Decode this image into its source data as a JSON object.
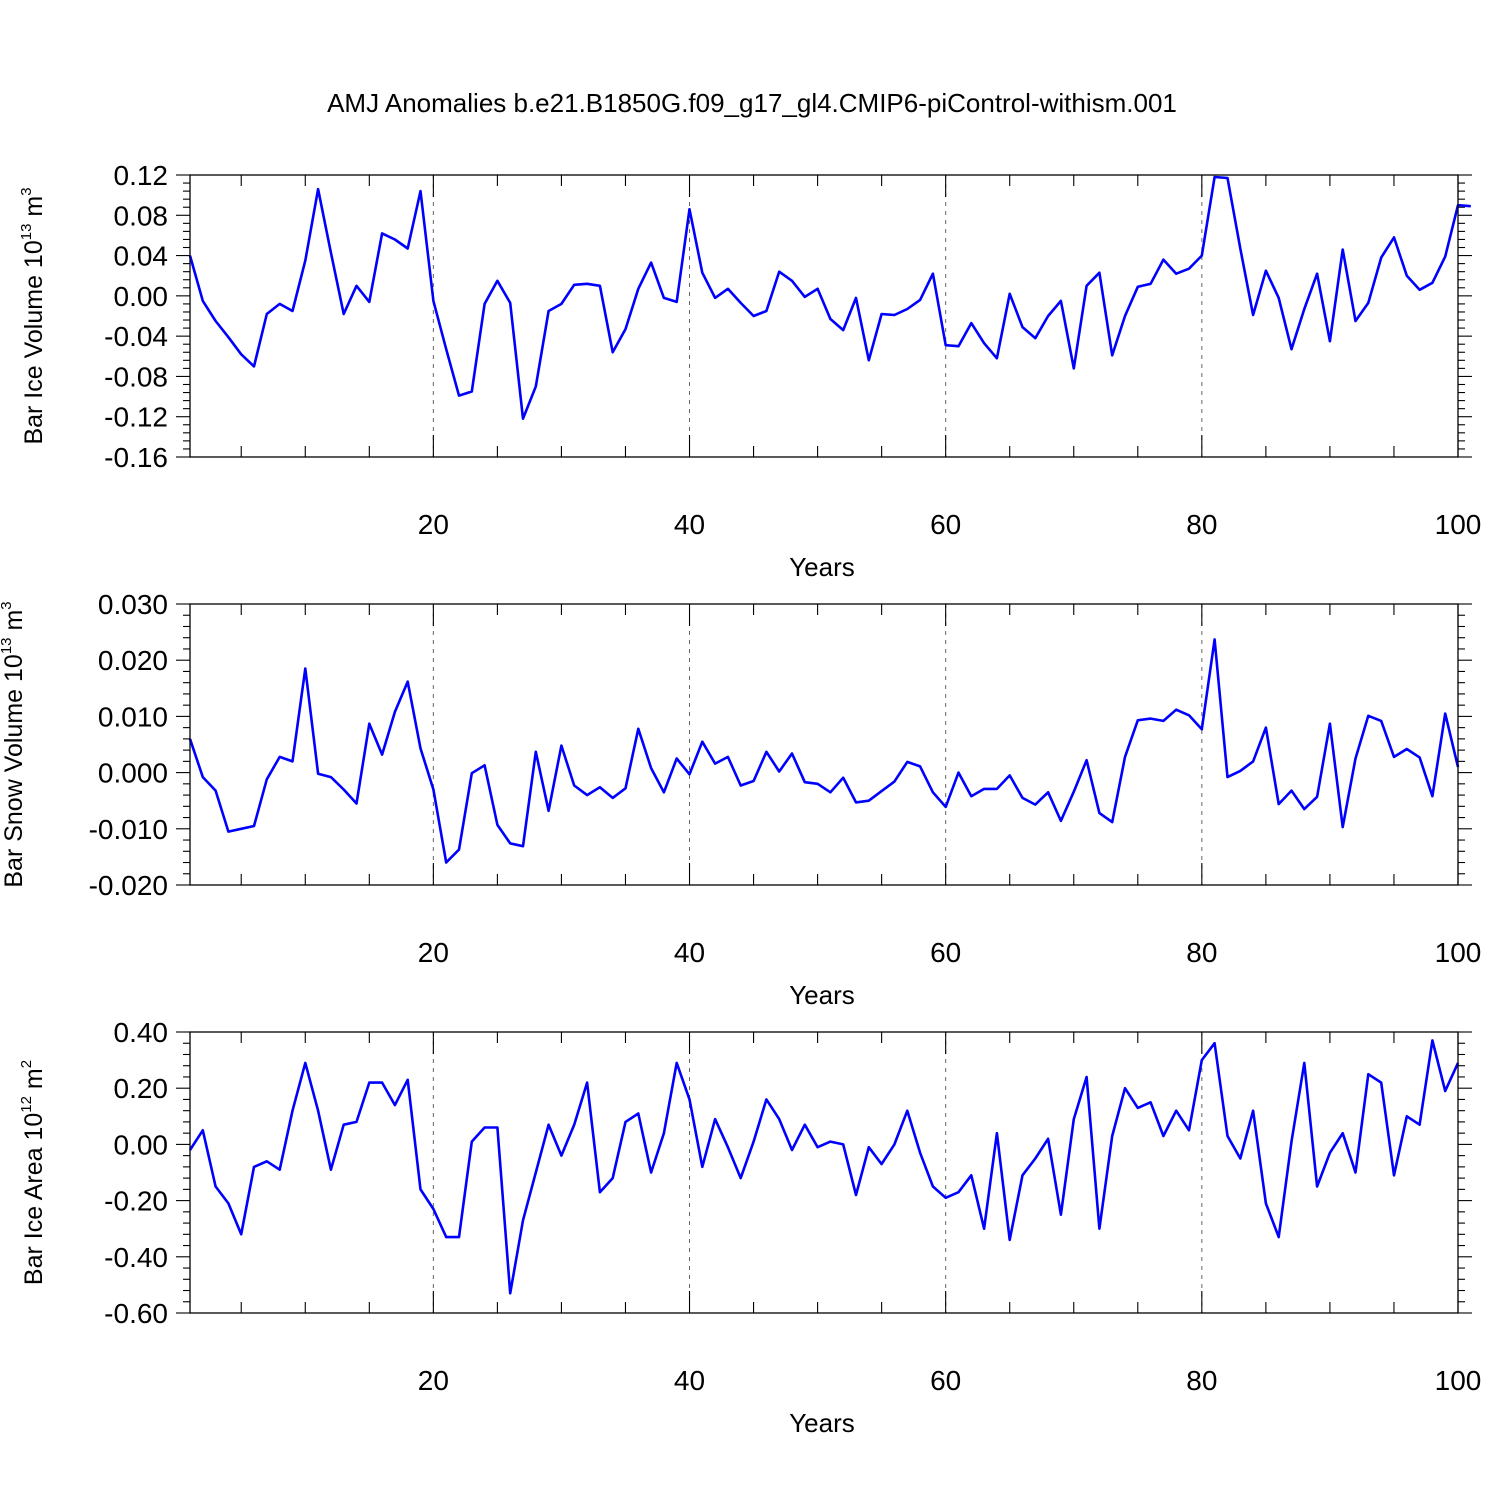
{
  "chart_data": [
    {
      "type": "line",
      "title": "AMJ Anomalies b.e21.B1850G.f09_g17_gl4.CMIP6-piControl-withism.001",
      "xlabel": "Years",
      "ylabel": {
        "base": "Bar Ice Volume 10",
        "exp": "13",
        "unit": " m",
        "unit_exp": "3"
      },
      "xlim": [
        1,
        100
      ],
      "ylim": [
        -0.16,
        0.12
      ],
      "xticks": [
        20,
        40,
        60,
        80,
        100
      ],
      "xtick_labels": [
        "20",
        "40",
        "60",
        "80",
        "100"
      ],
      "yticks": [
        -0.16,
        -0.12,
        -0.08,
        -0.04,
        0.0,
        0.04,
        0.08,
        0.12
      ],
      "ytick_labels": [
        "-0.16",
        "-0.12",
        "-0.08",
        "-0.04",
        "0.00",
        "0.04",
        "0.08",
        "0.12"
      ],
      "grid_x": [
        20,
        40,
        60,
        80
      ],
      "color": "#0000ff",
      "series": [
        {
          "name": "Bar Ice Volume",
          "values": [
            0.04,
            -0.005,
            -0.025,
            -0.041,
            -0.058,
            -0.07,
            -0.018,
            -0.008,
            -0.015,
            0.035,
            0.106,
            0.043,
            -0.018,
            0.01,
            -0.006,
            0.062,
            0.056,
            0.047,
            0.104,
            -0.005,
            -0.053,
            -0.099,
            -0.095,
            -0.008,
            0.015,
            -0.007,
            -0.122,
            -0.09,
            -0.015,
            -0.008,
            0.011,
            0.012,
            0.01,
            -0.056,
            -0.033,
            0.007,
            0.033,
            -0.002,
            -0.006,
            0.086,
            0.023,
            -0.002,
            0.007,
            -0.007,
            -0.02,
            -0.015,
            0.024,
            0.015,
            -0.001,
            0.007,
            -0.023,
            -0.034,
            -0.002,
            -0.064,
            -0.018,
            -0.019,
            -0.013,
            -0.004,
            0.022,
            -0.049,
            -0.05,
            -0.027,
            -0.047,
            -0.062,
            0.002,
            -0.031,
            -0.042,
            -0.02,
            -0.005,
            -0.072,
            0.01,
            0.023,
            -0.059,
            -0.02,
            0.009,
            0.012,
            0.036,
            0.022,
            0.027,
            0.04,
            0.118,
            0.117,
            0.047,
            -0.019,
            0.025,
            -0.002,
            -0.053,
            -0.013,
            0.022,
            -0.045,
            0.046,
            -0.025,
            -0.007,
            0.038,
            0.058,
            0.02,
            0.006,
            0.013,
            0.039,
            0.09,
            0.089
          ]
        }
      ]
    },
    {
      "type": "line",
      "xlabel": "Years",
      "ylabel": {
        "base": "Bar Snow Volume 10",
        "exp": "13",
        "unit": " m",
        "unit_exp": "3"
      },
      "xlim": [
        1,
        100
      ],
      "ylim": [
        -0.02,
        0.03
      ],
      "xticks": [
        20,
        40,
        60,
        80,
        100
      ],
      "xtick_labels": [
        "20",
        "40",
        "60",
        "80",
        "100"
      ],
      "yticks": [
        -0.02,
        -0.01,
        0.0,
        0.01,
        0.02,
        0.03
      ],
      "ytick_labels": [
        "-0.020",
        "-0.010",
        "0.000",
        "0.010",
        "0.020",
        "0.030"
      ],
      "grid_x": [
        20,
        40,
        60,
        80
      ],
      "color": "#0000ff",
      "series": [
        {
          "name": "Bar Snow Volume",
          "values": [
            0.006,
            -0.0008,
            -0.0032,
            -0.0105,
            -0.01,
            -0.0095,
            -0.0012,
            0.0028,
            0.002,
            0.0185,
            -0.0002,
            -0.0008,
            -0.003,
            -0.0055,
            0.0087,
            0.0032,
            0.0108,
            0.0162,
            0.0043,
            -0.003,
            -0.016,
            -0.0137,
            -0.0001,
            0.0013,
            -0.0093,
            -0.0126,
            -0.0131,
            0.0037,
            -0.0068,
            0.0048,
            -0.0023,
            -0.004,
            -0.0026,
            -0.0045,
            -0.0028,
            0.0078,
            0.0008,
            -0.0035,
            0.0025,
            -0.0003,
            0.0055,
            0.0016,
            0.0028,
            -0.0023,
            -0.0015,
            0.0037,
            0.0002,
            0.0034,
            -0.0017,
            -0.002,
            -0.0035,
            -0.0009,
            -0.0053,
            -0.005,
            -0.0033,
            -0.0016,
            0.0019,
            0.0011,
            -0.0035,
            -0.0061,
            0.0,
            -0.0042,
            -0.0029,
            -0.0029,
            -0.0005,
            -0.0045,
            -0.0057,
            -0.0035,
            -0.0086,
            -0.0034,
            0.0022,
            -0.0072,
            -0.0088,
            0.0028,
            0.0093,
            0.0096,
            0.0092,
            0.0112,
            0.0102,
            0.0077,
            0.0237,
            -0.0008,
            0.0003,
            0.002,
            0.008,
            -0.0056,
            -0.0032,
            -0.0065,
            -0.0043,
            0.0087,
            -0.0097,
            0.0025,
            0.0101,
            0.0092,
            0.0028,
            0.0042,
            0.0027,
            -0.0042,
            0.0105,
            0.001
          ]
        }
      ]
    },
    {
      "type": "line",
      "xlabel": "Years",
      "ylabel": {
        "base": "Bar Ice Area 10",
        "exp": "12",
        "unit": " m",
        "unit_exp": "2"
      },
      "xlim": [
        1,
        100
      ],
      "ylim": [
        -0.6,
        0.4
      ],
      "xticks": [
        20,
        40,
        60,
        80,
        100
      ],
      "xtick_labels": [
        "20",
        "40",
        "60",
        "80",
        "100"
      ],
      "yticks": [
        -0.6,
        -0.4,
        -0.2,
        0.0,
        0.2,
        0.4
      ],
      "ytick_labels": [
        "-0.60",
        "-0.40",
        "-0.20",
        "0.00",
        "0.20",
        "0.40"
      ],
      "grid_x": [
        20,
        40,
        60,
        80
      ],
      "color": "#0000ff",
      "series": [
        {
          "name": "Bar Ice Area",
          "values": [
            -0.02,
            0.05,
            -0.15,
            -0.21,
            -0.32,
            -0.08,
            -0.06,
            -0.09,
            0.12,
            0.29,
            0.12,
            -0.09,
            0.07,
            0.08,
            0.22,
            0.22,
            0.14,
            0.23,
            -0.16,
            -0.23,
            -0.33,
            -0.33,
            0.01,
            0.06,
            0.06,
            -0.53,
            -0.27,
            -0.1,
            0.07,
            -0.04,
            0.07,
            0.22,
            -0.17,
            -0.12,
            0.08,
            0.11,
            -0.1,
            0.04,
            0.29,
            0.16,
            -0.08,
            0.09,
            -0.01,
            -0.12,
            0.01,
            0.16,
            0.09,
            -0.02,
            0.07,
            -0.01,
            0.01,
            0.0,
            -0.18,
            -0.01,
            -0.07,
            0.0,
            0.12,
            -0.03,
            -0.15,
            -0.19,
            -0.17,
            -0.11,
            -0.3,
            0.04,
            -0.34,
            -0.11,
            -0.05,
            0.02,
            -0.25,
            0.09,
            0.24,
            -0.3,
            0.03,
            0.2,
            0.13,
            0.15,
            0.03,
            0.12,
            0.05,
            0.3,
            0.36,
            0.03,
            -0.05,
            0.12,
            -0.21,
            -0.33,
            0.01,
            0.29,
            -0.15,
            -0.03,
            0.04,
            -0.1,
            0.25,
            0.22,
            -0.11,
            0.1,
            0.07,
            0.37,
            0.19,
            0.29
          ]
        }
      ]
    }
  ]
}
